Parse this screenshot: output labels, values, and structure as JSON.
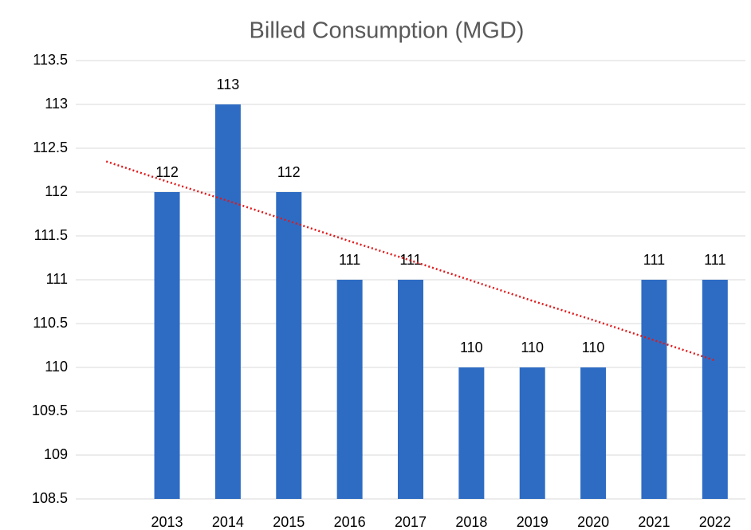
{
  "chart_data": {
    "type": "bar",
    "title": "Billed Consumption (MGD)",
    "categories": [
      null,
      "2013",
      "2014",
      "2015",
      "2016",
      "2017",
      "2018",
      "2019",
      "2020",
      "2021",
      "2022"
    ],
    "values": [
      null,
      112,
      113,
      112,
      111,
      111,
      110,
      110,
      110,
      111,
      111
    ],
    "color": "#2e6cc4",
    "ylim": [
      108.5,
      113.5
    ],
    "yticks": [
      108.5,
      109,
      109.5,
      110,
      110.5,
      111,
      111.5,
      112,
      112.5,
      113,
      113.5
    ],
    "grid": true,
    "trendline": {
      "color": "#e0191b",
      "values": [
        112.35,
        112.12,
        111.9,
        111.67,
        111.44,
        111.22,
        110.99,
        110.76,
        110.54,
        110.31,
        110.08
      ]
    }
  }
}
